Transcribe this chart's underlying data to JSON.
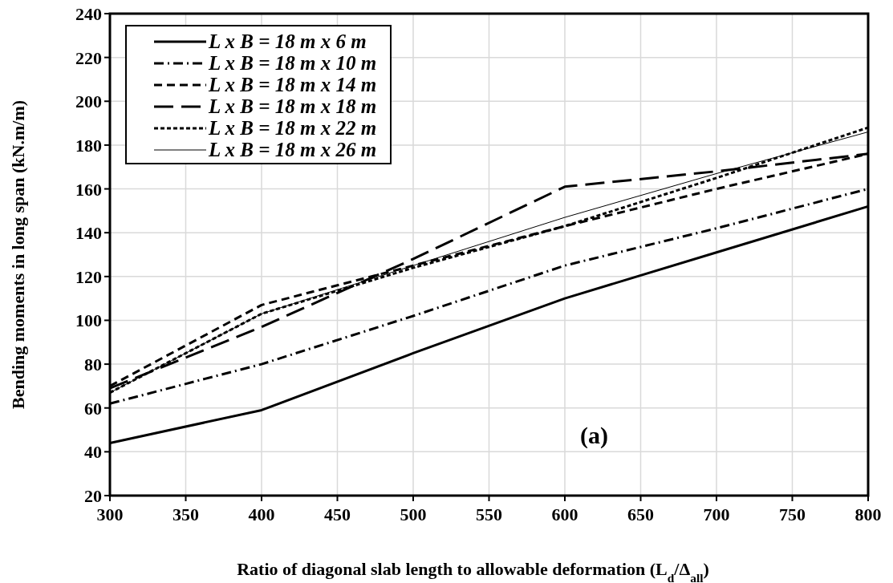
{
  "chart_data": {
    "type": "line",
    "xlabel": "Ratio of diagonal slab length to allowable deformation (L$_{d}$/Δ$_{all}$)",
    "ylabel": "Bending moments in long  span (kN.m/m)",
    "x": [
      300,
      400,
      500,
      600,
      700,
      800
    ],
    "series": [
      {
        "name": "L x B = 18 m x 6 m",
        "color": "#000000",
        "line_style": "solid",
        "values": [
          44,
          59,
          85,
          110,
          131,
          152
        ]
      },
      {
        "name": "L x B = 18 m x 10 m",
        "color": "#000000",
        "line_style": "dashed",
        "values": [
          62,
          80,
          102,
          125,
          142,
          160
        ]
      },
      {
        "name": "L x B = 18 m x 14 m",
        "color": "#000000",
        "line_style": "dashed",
        "values": [
          70,
          107,
          125,
          143,
          160,
          176
        ]
      },
      {
        "name": "L x B = 18 m x 18 m",
        "color": "#000000",
        "line_style": "dashed",
        "values": [
          69,
          97,
          128,
          161,
          168,
          176
        ]
      },
      {
        "name": "L x B = 18 m x 22 m",
        "color": "#000000",
        "line_style": "dotted",
        "values": [
          67,
          103,
          124,
          143,
          165,
          188
        ]
      },
      {
        "name": "L x B = 18 m x 26 m",
        "color": "#000000",
        "line_style": "solid",
        "values": [
          67,
          103,
          125,
          147,
          167,
          186
        ]
      }
    ],
    "xlim": [
      300,
      800
    ],
    "xticks": [
      300,
      350,
      400,
      450,
      500,
      550,
      600,
      650,
      700,
      750,
      800
    ],
    "ylim": [
      20,
      240
    ],
    "yticks": [
      20,
      40,
      60,
      80,
      100,
      120,
      140,
      160,
      180,
      200,
      220,
      240
    ],
    "grid": true,
    "legend": "top left",
    "marker": "none",
    "annotations": [
      "(a)"
    ]
  }
}
